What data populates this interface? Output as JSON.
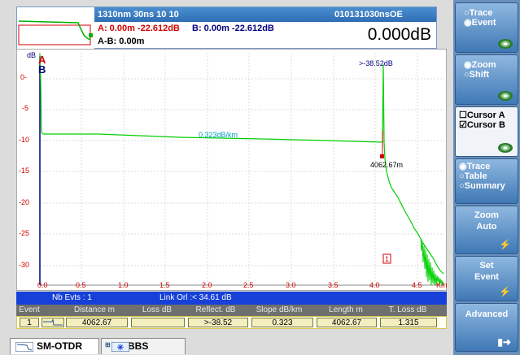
{
  "header": {
    "acq": "1310nm 30ns   10  10",
    "file_id": "010131030nsOE",
    "cursor_a": "A: 0.00m -22.612dB",
    "cursor_b": "B: 0.00m -22.612dB",
    "ab_dist": "A-B: 0.00m",
    "big_value": "0.000dB"
  },
  "plot": {
    "unit_y": "dB",
    "unit_x": "Km",
    "y_ticks": [
      "0-",
      "-5",
      "-10",
      "-15",
      "-20",
      "-25",
      "-30"
    ],
    "x_ticks": [
      "0.0",
      "0.5",
      "1.0",
      "1.5",
      "2.0",
      "2.5",
      "3.0",
      "3.5",
      "4.0",
      "4.5"
    ],
    "marker_a": "A",
    "marker_b": "B",
    "slope_label": "0.323dB/km",
    "reflect_label": ">-38.52dB",
    "event_dist_label": "4062.67m",
    "event_number": "1"
  },
  "events": {
    "nb_evts": "Nb Evts : 1",
    "link_orl": "Link Orl :< 34.61 dB",
    "columns": [
      "Event",
      "Distance  m",
      "Loss dB",
      "Reflect. dB",
      "Slope  dB/km",
      "Length m",
      "T. Loss dB"
    ],
    "row": {
      "event": "1",
      "distance": "4062.67",
      "loss": "",
      "reflect": ">-38.52",
      "slope": "0.323",
      "length": "4062.67",
      "tloss": "1.315"
    }
  },
  "tabs": [
    {
      "label": "SM-OTDR"
    },
    {
      "label": "BBS"
    }
  ],
  "menu": {
    "trace_event": [
      "Trace",
      "Event"
    ],
    "zoom_shift": [
      "Zoom",
      "Shift"
    ],
    "cursor_a": "Cursor A",
    "cursor_b": "Cursor B",
    "view": [
      "Trace",
      "Table",
      "Summary"
    ],
    "zoom_auto": [
      "Zoom",
      "Auto"
    ],
    "set_event": [
      "Set",
      "Event"
    ],
    "advanced": "Advanced"
  },
  "colors": {
    "trace": "#00d000",
    "accent": "#2f6db5",
    "cursor_a": "#d00000",
    "cursor_b": "#000080"
  }
}
